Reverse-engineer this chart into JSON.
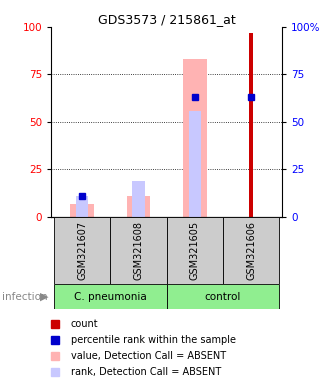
{
  "title": "GDS3573 / 215861_at",
  "samples": [
    "GSM321607",
    "GSM321608",
    "GSM321605",
    "GSM321606"
  ],
  "count_values": [
    0,
    0,
    0,
    97
  ],
  "percentile_values": [
    11,
    0,
    63,
    63
  ],
  "value_absent": [
    7,
    11,
    83,
    0
  ],
  "rank_absent": [
    11,
    19,
    56,
    0
  ],
  "ylim": [
    0,
    100
  ],
  "yticks": [
    0,
    25,
    50,
    75,
    100
  ],
  "count_color": "#cc0000",
  "percentile_color": "#0000cc",
  "value_absent_color": "#ffb3b3",
  "rank_absent_color": "#c8c8ff",
  "background_color": "#ffffff",
  "group_info": [
    {
      "label": "C. pneumonia",
      "cols": [
        0,
        1
      ],
      "color": "#90ee90"
    },
    {
      "label": "control",
      "cols": [
        2,
        3
      ],
      "color": "#90ee90"
    }
  ],
  "sample_box_color": "#cccccc",
  "legend_items": [
    {
      "color": "#cc0000",
      "label": "count"
    },
    {
      "color": "#0000cc",
      "label": "percentile rank within the sample"
    },
    {
      "color": "#ffb3b3",
      "label": "value, Detection Call = ABSENT"
    },
    {
      "color": "#c8c8ff",
      "label": "rank, Detection Call = ABSENT"
    }
  ]
}
